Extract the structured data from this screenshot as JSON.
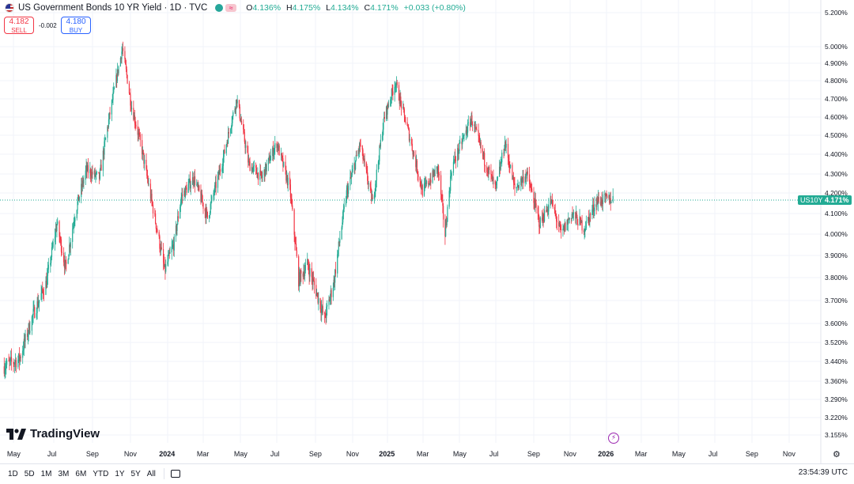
{
  "header": {
    "title": "US Government Bonds 10 YR Yield · 1D · TVC",
    "ohlc": {
      "o_label": "O",
      "o": "4.136%",
      "h_label": "H",
      "h": "4.175%",
      "l_label": "L",
      "l": "4.134%",
      "c_label": "C",
      "c": "4.171%",
      "change": "+0.033 (+0.80%)"
    },
    "symbol_icon": "flag-us-icon",
    "status_color": "#26a69a"
  },
  "trade": {
    "sell_price": "4.182",
    "sell_label": "SELL",
    "spread": "-0.002",
    "buy_price": "4.180",
    "buy_label": "BUY"
  },
  "price_tag": {
    "symbol": "US10Y",
    "value": "4.171%"
  },
  "y_ticks": [
    "5.200%",
    "5.000%",
    "4.900%",
    "4.800%",
    "4.700%",
    "4.600%",
    "4.500%",
    "4.400%",
    "4.300%",
    "4.200%",
    "4.100%",
    "4.000%",
    "3.900%",
    "3.800%",
    "3.700%",
    "3.600%",
    "3.520%",
    "3.440%",
    "3.360%",
    "3.290%",
    "3.220%",
    "3.155%"
  ],
  "x_ticks": [
    "May",
    "Jul",
    "Sep",
    "Nov",
    "2024",
    "Mar",
    "May",
    "Jul",
    "Sep",
    "Nov",
    "2025",
    "Mar",
    "May",
    "Jul",
    "Sep",
    "Nov",
    "2026",
    "Mar",
    "May",
    "Jul",
    "Sep",
    "Nov"
  ],
  "brand": "TradingView",
  "ranges": [
    "1D",
    "5D",
    "1M",
    "3M",
    "6M",
    "YTD",
    "1Y",
    "5Y",
    "All"
  ],
  "clock": "23:54:39 UTC",
  "colors": {
    "up": "#22ab94",
    "down": "#f23645",
    "grid": "#f0f3fa"
  },
  "chart_data": {
    "type": "candlestick",
    "title": "US Government Bonds 10 YR Yield · 1D · TVC",
    "x_axis": "date (Apr 2023 – Nov 2026)",
    "y_axis_unit": "%",
    "ylim": [
      3.155,
      5.2
    ],
    "last_value": 4.171,
    "scale": "logarithmic-style percent ticks",
    "waypoints": [
      {
        "x": "2023-04-17",
        "y": 3.42
      },
      {
        "x": "2023-05-10",
        "y": 3.45
      },
      {
        "x": "2023-05-31",
        "y": 3.64
      },
      {
        "x": "2023-06-20",
        "y": 3.78
      },
      {
        "x": "2023-07-06",
        "y": 4.05
      },
      {
        "x": "2023-07-20",
        "y": 3.84
      },
      {
        "x": "2023-08-04",
        "y": 4.1
      },
      {
        "x": "2023-08-22",
        "y": 4.32
      },
      {
        "x": "2023-09-12",
        "y": 4.28
      },
      {
        "x": "2023-09-29",
        "y": 4.62
      },
      {
        "x": "2023-10-19",
        "y": 4.99
      },
      {
        "x": "2023-11-02",
        "y": 4.67
      },
      {
        "x": "2023-11-20",
        "y": 4.42
      },
      {
        "x": "2023-12-05",
        "y": 4.17
      },
      {
        "x": "2023-12-27",
        "y": 3.83
      },
      {
        "x": "2024-01-12",
        "y": 3.96
      },
      {
        "x": "2024-01-24",
        "y": 4.18
      },
      {
        "x": "2024-02-14",
        "y": 4.28
      },
      {
        "x": "2024-03-08",
        "y": 4.08
      },
      {
        "x": "2024-04-02",
        "y": 4.37
      },
      {
        "x": "2024-04-25",
        "y": 4.7
      },
      {
        "x": "2024-05-15",
        "y": 4.35
      },
      {
        "x": "2024-06-06",
        "y": 4.28
      },
      {
        "x": "2024-07-01",
        "y": 4.46
      },
      {
        "x": "2024-07-22",
        "y": 4.22
      },
      {
        "x": "2024-08-05",
        "y": 3.79
      },
      {
        "x": "2024-08-19",
        "y": 3.86
      },
      {
        "x": "2024-09-16",
        "y": 3.62
      },
      {
        "x": "2024-10-01",
        "y": 3.78
      },
      {
        "x": "2024-10-22",
        "y": 4.2
      },
      {
        "x": "2024-11-14",
        "y": 4.45
      },
      {
        "x": "2024-12-06",
        "y": 4.15
      },
      {
        "x": "2024-12-26",
        "y": 4.59
      },
      {
        "x": "2025-01-14",
        "y": 4.79
      },
      {
        "x": "2025-02-03",
        "y": 4.54
      },
      {
        "x": "2025-02-28",
        "y": 4.21
      },
      {
        "x": "2025-03-26",
        "y": 4.33
      },
      {
        "x": "2025-04-07",
        "y": 4.0
      },
      {
        "x": "2025-04-18",
        "y": 4.33
      },
      {
        "x": "2025-05-21",
        "y": 4.59
      },
      {
        "x": "2025-06-12",
        "y": 4.37
      },
      {
        "x": "2025-07-01",
        "y": 4.22
      },
      {
        "x": "2025-07-16",
        "y": 4.46
      },
      {
        "x": "2025-08-01",
        "y": 4.22
      },
      {
        "x": "2025-08-20",
        "y": 4.3
      },
      {
        "x": "2025-09-11",
        "y": 4.05
      },
      {
        "x": "2025-09-30",
        "y": 4.16
      },
      {
        "x": "2025-10-17",
        "y": 4.0
      },
      {
        "x": "2025-11-04",
        "y": 4.1
      },
      {
        "x": "2025-11-25",
        "y": 4.03
      },
      {
        "x": "2025-12-15",
        "y": 4.16
      },
      {
        "x": "2026-01-02",
        "y": 4.17
      },
      {
        "x": "2026-01-12",
        "y": 4.171
      }
    ]
  }
}
